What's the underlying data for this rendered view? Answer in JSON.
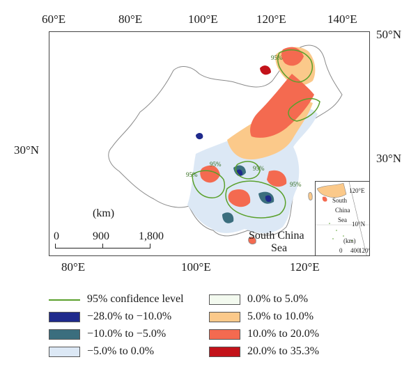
{
  "map": {
    "top_longitudes": [
      "60°E",
      "80°E",
      "100°E",
      "120°E",
      "140°E"
    ],
    "bottom_longitudes": [
      "80°E",
      "100°E",
      "120°E"
    ],
    "left_latitudes": [
      "30°N"
    ],
    "right_latitudes": [
      "50°N",
      "30°N"
    ],
    "scale_unit": "(km)",
    "scale_ticks": [
      "0",
      "900",
      "1,800"
    ],
    "sea_label_line1": "South China",
    "sea_label_line2": "Sea",
    "contour_label": "95%",
    "inset": {
      "lon_label": "120°E",
      "lat_label": "10°N",
      "sea_label_line1": "South",
      "sea_label_line2": "China",
      "sea_label_line3": "Sea",
      "scale_unit": "(km)",
      "scale_ticks": [
        "0",
        "400"
      ],
      "bottom_lon": "120°E"
    }
  },
  "legend": {
    "items": [
      {
        "label": "95% confidence level",
        "color": "#5aa02c",
        "kind": "line"
      },
      {
        "label": "−28.0% to −10.0%",
        "color": "#1f2a8c",
        "kind": "fill"
      },
      {
        "label": "−10.0% to −5.0%",
        "color": "#3b6e7e",
        "kind": "fill"
      },
      {
        "label": "−5.0% to 0.0%",
        "color": "#dce8f5",
        "kind": "fill"
      },
      {
        "label": "0.0% to 5.0%",
        "color": "#f3faef",
        "kind": "fill"
      },
      {
        "label": "5.0% to 10.0%",
        "color": "#fbc98a",
        "kind": "fill"
      },
      {
        "label": "10.0% to 20.0%",
        "color": "#f46a50",
        "kind": "fill"
      },
      {
        "label": "20.0% to 35.3%",
        "color": "#c3121a",
        "kind": "fill"
      }
    ]
  }
}
